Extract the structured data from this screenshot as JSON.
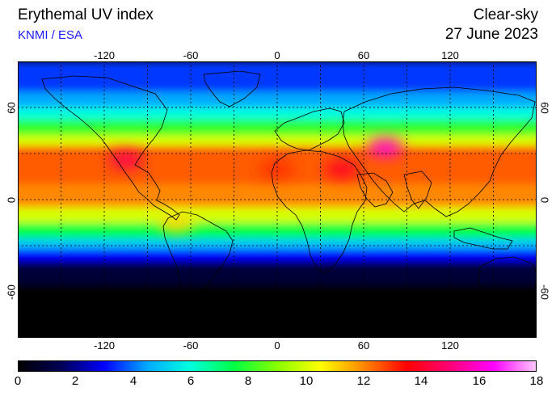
{
  "header": {
    "title": "Erythemal UV index",
    "subtitle": "KNMI / ESA",
    "condition": "Clear-sky",
    "date": "27 June 2023"
  },
  "map": {
    "lon_ticks": [
      "-120",
      "-60",
      "0",
      "60",
      "120"
    ],
    "lat_ticks": [
      "60",
      "0",
      "-60"
    ],
    "lon_range": [
      -180,
      180
    ],
    "lat_range": [
      -90,
      90
    ],
    "grid": "dotted 30-degree graticule",
    "bands": [
      {
        "lat_top": 90,
        "lat_bottom": 70,
        "uv": 3.5
      },
      {
        "lat_top": 70,
        "lat_bottom": 60,
        "uv": 4.5
      },
      {
        "lat_top": 60,
        "lat_bottom": 52,
        "uv": 6
      },
      {
        "lat_top": 52,
        "lat_bottom": 42,
        "uv": 8
      },
      {
        "lat_top": 42,
        "lat_bottom": 35,
        "uv": 10
      },
      {
        "lat_top": 35,
        "lat_bottom": 10,
        "uv": 12.5
      },
      {
        "lat_top": 10,
        "lat_bottom": -5,
        "uv": 12
      },
      {
        "lat_top": -5,
        "lat_bottom": -15,
        "uv": 10
      },
      {
        "lat_top": -15,
        "lat_bottom": -25,
        "uv": 7.5
      },
      {
        "lat_top": -25,
        "lat_bottom": -32,
        "uv": 5
      },
      {
        "lat_top": -32,
        "lat_bottom": -40,
        "uv": 3
      },
      {
        "lat_top": -40,
        "lat_bottom": -55,
        "uv": 1
      },
      {
        "lat_top": -55,
        "lat_bottom": -90,
        "uv": 0
      }
    ],
    "hotspots": [
      {
        "lon": 75,
        "lat": 34,
        "uv": 16,
        "name": "tibetan-plateau"
      },
      {
        "lon": -105,
        "lat": 26,
        "uv": 14.5,
        "name": "mexican-highlands"
      },
      {
        "lon": 45,
        "lat": 20,
        "uv": 14,
        "name": "arabia"
      },
      {
        "lon": -70,
        "lat": -15,
        "uv": 11,
        "name": "andes"
      },
      {
        "lon": 0,
        "lat": 20,
        "uv": 13,
        "name": "sahara"
      }
    ]
  },
  "colorbar": {
    "ticks": [
      "0",
      "2",
      "4",
      "6",
      "8",
      "10",
      "12",
      "14",
      "16",
      "18"
    ],
    "min": 0,
    "max": 18,
    "stops": [
      "#000000",
      "#000055",
      "#0000ff",
      "#00aaff",
      "#00ffdd",
      "#00ff44",
      "#88ff00",
      "#ffff00",
      "#ff8800",
      "#ff0000",
      "#ff0077",
      "#ff00ff",
      "#ffccff"
    ]
  }
}
